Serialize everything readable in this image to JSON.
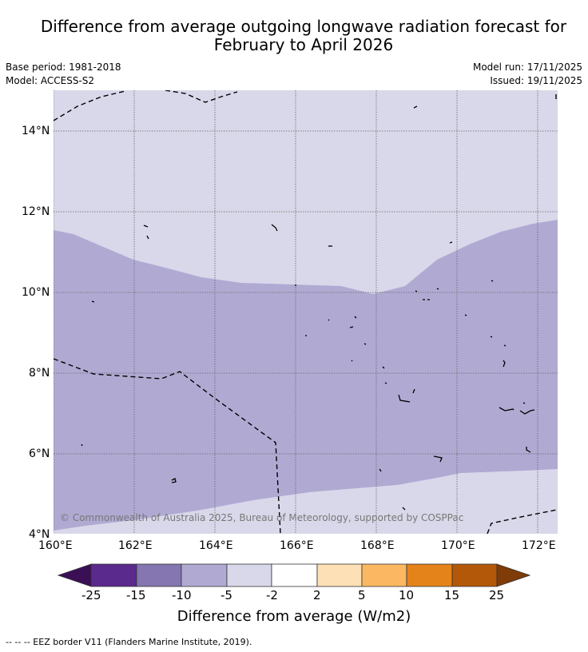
{
  "title_line1": "Difference from average outgoing longwave radiation forecast for",
  "title_line2": "February to April 2026",
  "base_period": "Base period: 1981-2018",
  "model": "Model: ACCESS-S2",
  "model_run": "Model run: 17/11/2025",
  "issued": "Issued: 19/11/2025",
  "copyright": "© Commonwealth of Australia 2025, Bureau of Meteorology, supported by COSPPac",
  "x_ticks": [
    "160°E",
    "162°E",
    "164°E",
    "166°E",
    "168°E",
    "170°E",
    "172°E"
  ],
  "y_ticks": [
    "14°N",
    "12°N",
    "10°N",
    "8°N",
    "6°N",
    "4°N"
  ],
  "colorbar": {
    "title": "Difference from average (W/m2)",
    "labels": [
      "-25",
      "-15",
      "-10",
      "-5",
      "-2",
      "2",
      "5",
      "10",
      "15",
      "25"
    ],
    "colors": {
      "below_-25": "#3b0f55",
      "-25_-15": "#5b2a8d",
      "-15_-10": "#8575b0",
      "-10_-5": "#b0aad3",
      "-5_-2": "#d8d8ea",
      "-2_2": "#ffffff",
      "2_5": "#fde0b5",
      "5_10": "#fbb762",
      "10_15": "#e4831a",
      "15_25": "#b35808",
      "above_25": "#7f3b08"
    }
  },
  "legend": "--  --  -- EEZ border V11 (Flanders Marine Institute, 2019)."
}
